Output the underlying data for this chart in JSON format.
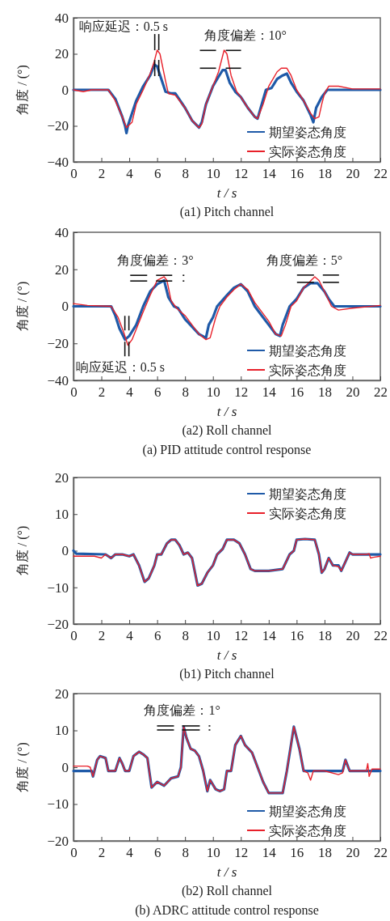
{
  "chart_data": [
    {
      "type": "line",
      "title": "(a1) Pitch channel",
      "xlabel": "t / s",
      "ylabel": "角度 / (°)",
      "xlim": [
        0,
        22
      ],
      "xticks": [
        0,
        2,
        4,
        6,
        8,
        10,
        12,
        14,
        16,
        18,
        20,
        22
      ],
      "ylim": [
        -40,
        40
      ],
      "yticks": [
        -40,
        -20,
        0,
        20,
        40
      ],
      "legend": "bottom right",
      "annotations": [
        {
          "text": "响应延迟：0.5 s",
          "x": 6,
          "y": 22
        },
        {
          "text": "角度偏差：10°",
          "x": 10.8,
          "y": 21
        }
      ],
      "series": [
        {
          "name": "期望姿态角度",
          "color": "#1f5aa8",
          "x": [
            0,
            2.5,
            3,
            3.5,
            3.7,
            3.8,
            3.9,
            4.5,
            5,
            5.5,
            5.8,
            6,
            6.3,
            6.6,
            7,
            7.3,
            8,
            8.5,
            9,
            9.2,
            9.5,
            10,
            10.3,
            10.7,
            10.9,
            11.2,
            11.6,
            12,
            12.5,
            13,
            13.2,
            13.5,
            13.8,
            14.2,
            14.6,
            15,
            15.3,
            15.6,
            16,
            16.5,
            17,
            17.2,
            17.4,
            17.8,
            18,
            18.2,
            22
          ],
          "values": [
            0,
            0,
            -5,
            -15,
            -20,
            -24,
            -20,
            -6,
            2,
            8,
            14,
            13,
            6,
            -1,
            -2,
            -2,
            -10,
            -17,
            -21,
            -18,
            -8,
            2,
            6,
            11,
            11,
            4,
            -1,
            -4,
            -10,
            -15,
            -16,
            -8,
            0,
            1,
            6,
            8,
            9,
            4,
            -1,
            -6,
            -14,
            -18,
            -10,
            -4,
            -2,
            0,
            0
          ]
        },
        {
          "name": "实际姿态角度",
          "color": "#e8202a",
          "x": [
            0,
            0.7,
            1.3,
            2.5,
            3,
            3.5,
            3.8,
            4.2,
            4.5,
            5,
            5.5,
            5.8,
            6,
            6.2,
            6.6,
            6.8,
            7.3,
            8,
            8.5,
            9,
            9.2,
            9.5,
            10,
            10.4,
            10.8,
            11,
            11.3,
            11.7,
            12,
            12.5,
            13,
            13.2,
            13.6,
            14,
            14.6,
            14.9,
            15.3,
            15.6,
            16,
            16.5,
            17,
            17.3,
            17.6,
            17.8,
            18,
            18.3,
            19,
            20,
            22
          ],
          "values": [
            0,
            -1,
            0,
            0,
            -6,
            -15,
            -21,
            -18,
            -8,
            0,
            9,
            16,
            22,
            20,
            5,
            -2,
            -3,
            -10,
            -17,
            -21,
            -19,
            -8,
            2,
            10,
            22,
            20,
            8,
            -1,
            -4,
            -10,
            -15,
            -16,
            -8,
            2,
            10,
            12,
            12,
            8,
            0,
            -6,
            -13,
            -16,
            -15,
            -8,
            -2,
            2,
            2,
            0.5,
            0.5
          ]
        }
      ]
    },
    {
      "type": "line",
      "title": "(a2) Roll channel",
      "xlabel": "t / s",
      "ylabel": "角度 / (°)",
      "xlim": [
        0,
        22
      ],
      "xticks": [
        0,
        2,
        4,
        6,
        8,
        10,
        12,
        14,
        16,
        18,
        20,
        22
      ],
      "ylim": [
        -40,
        40
      ],
      "yticks": [
        -40,
        -20,
        0,
        20,
        40
      ],
      "legend": "bottom right",
      "annotations": [
        {
          "text": "角度偏差：3°",
          "x": 6.5,
          "y": 15
        },
        {
          "text": "角度偏差：5°",
          "x": 17.3,
          "y": 16
        },
        {
          "text": "响应延迟：0.5 s",
          "x": 3.8,
          "y": -20
        },
        "(a) PID attitude control response"
      ],
      "series": [
        {
          "name": "期望姿态角度",
          "color": "#1f5aa8",
          "x": [
            0,
            2.7,
            3,
            3.3,
            3.7,
            4,
            4.5,
            5,
            5.5,
            6,
            6.5,
            6.8,
            7.2,
            7.5,
            8,
            8.5,
            9,
            9.5,
            9.7,
            10,
            10.3,
            11,
            11.5,
            12,
            12.5,
            13,
            13.5,
            14,
            14.5,
            14.8,
            15,
            15.5,
            16,
            16.5,
            17,
            17.5,
            18,
            18.3,
            18.7,
            22
          ],
          "values": [
            0,
            0,
            -5,
            -12,
            -18,
            -16,
            -10,
            0,
            8,
            12,
            14,
            5,
            0,
            -1,
            -7,
            -11,
            -15,
            -17,
            -10,
            -6,
            0,
            6,
            10,
            12,
            8,
            0,
            -5,
            -10,
            -15,
            -16,
            -10,
            0,
            4,
            10,
            12.5,
            12.5,
            8,
            4,
            0,
            0
          ]
        },
        {
          "name": "实际姿态角度",
          "color": "#e8202a",
          "x": [
            0,
            1,
            2.7,
            3.2,
            3.6,
            3.9,
            4.2,
            5,
            5.5,
            6,
            6.5,
            6.7,
            7,
            7.4,
            8,
            8.5,
            9,
            9.5,
            9.8,
            10.2,
            10.5,
            11,
            11.5,
            12,
            12.5,
            13,
            13.5,
            14,
            14.5,
            14.9,
            15.2,
            15.6,
            16,
            16.5,
            17.3,
            17.6,
            18,
            18.5,
            19,
            20,
            22
          ],
          "values": [
            1.5,
            0.5,
            0,
            -6,
            -14,
            -21,
            -18,
            -3,
            6,
            14,
            16,
            14,
            3,
            -1,
            -5,
            -10,
            -15,
            -18,
            -17,
            -6,
            0,
            5,
            9,
            12,
            9,
            2,
            -3,
            -8,
            -15,
            -16,
            -10,
            0,
            3,
            10,
            16,
            14,
            8,
            0,
            -2,
            -1,
            0.5
          ]
        }
      ]
    },
    {
      "type": "line",
      "title": "(b1) Pitch channel",
      "xlabel": "t / s",
      "ylabel": "角度 / (°)",
      "xlim": [
        0,
        22
      ],
      "xticks": [
        0,
        2,
        4,
        6,
        8,
        10,
        12,
        14,
        16,
        18,
        20,
        22
      ],
      "ylim": [
        -20,
        20
      ],
      "yticks": [
        -20,
        -10,
        0,
        10,
        20
      ],
      "legend": "top right",
      "series": [
        {
          "name": "期望姿态角度",
          "color": "#1f5aa8",
          "x": [
            0,
            0.2,
            2.2,
            2.3,
            2.7,
            3,
            3.5,
            4,
            4.3,
            4.7,
            5.1,
            5.4,
            5.8,
            6,
            6.3,
            6.7,
            7,
            7.3,
            7.6,
            7.9,
            8.2,
            8.5,
            8.9,
            9.2,
            9.6,
            10,
            10.3,
            10.7,
            11,
            11.5,
            11.9,
            12.3,
            12.7,
            13,
            14,
            15,
            15.5,
            15.8,
            16,
            16.6,
            17.3,
            17.6,
            17.8,
            18,
            18.3,
            18.6,
            19,
            19.2,
            19.5,
            19.8,
            20,
            22
          ],
          "values": [
            0,
            -0.8,
            -1,
            -1,
            -2,
            -1,
            -1,
            -1.5,
            -1,
            -4,
            -8.5,
            -7.5,
            -4,
            -1,
            -1,
            2,
            3,
            3,
            1.5,
            -1,
            -0.5,
            -2,
            -9.5,
            -9,
            -6,
            -4,
            -1,
            0.5,
            3,
            3,
            2,
            -1,
            -5,
            -5.5,
            -5.5,
            -5,
            -1,
            0,
            3,
            3.2,
            3,
            -1,
            -6,
            -5,
            -2,
            -4,
            -4,
            -5.5,
            -3,
            -0.5,
            -1,
            -1
          ]
        },
        {
          "name": "实际姿态角度",
          "color": "#e8202a",
          "x": [
            0,
            1.5,
            2,
            2.3,
            2.7,
            3,
            3.5,
            4,
            4.3,
            4.7,
            5.1,
            5.4,
            5.8,
            6,
            6.3,
            6.7,
            7,
            7.3,
            7.6,
            7.9,
            8.2,
            8.5,
            8.9,
            9.2,
            9.6,
            10,
            10.3,
            10.7,
            11,
            11.5,
            11.9,
            12.3,
            12.7,
            13,
            14,
            15,
            15.5,
            15.8,
            16,
            16.6,
            17.3,
            17.6,
            17.8,
            18,
            18.3,
            18.6,
            19,
            19.2,
            19.5,
            19.8,
            20,
            21,
            21.2,
            21.3,
            21.5,
            22
          ],
          "values": [
            -1.5,
            -1.5,
            -2,
            -1,
            -2,
            -1,
            -1,
            -1.5,
            -1,
            -4,
            -8.5,
            -7.5,
            -4,
            -1,
            -1,
            2,
            3,
            3,
            1.5,
            -1,
            -0.5,
            -2,
            -9.5,
            -9,
            -6,
            -4,
            -1,
            0.5,
            3,
            3,
            2,
            -1,
            -5,
            -5.5,
            -5.5,
            -5,
            -1,
            0,
            3,
            3.2,
            3,
            -1,
            -6,
            -5,
            -2,
            -4,
            -4.3,
            -5.5,
            -3,
            -0.5,
            -1,
            -1,
            -0.8,
            -2,
            -1.8,
            -1.5
          ]
        }
      ]
    },
    {
      "type": "line",
      "title": "(b2) Roll channel",
      "xlabel": "t / s",
      "ylabel": "角度 / (°)",
      "xlim": [
        0,
        22
      ],
      "xticks": [
        0,
        2,
        4,
        6,
        8,
        10,
        12,
        14,
        16,
        18,
        20,
        22
      ],
      "ylim": [
        -20,
        20
      ],
      "yticks": [
        -20,
        -10,
        0,
        10,
        20
      ],
      "legend": "bottom right",
      "annotations": [
        {
          "text": "角度偏差：1°",
          "x": 7.9,
          "y": 11
        },
        "(b) ADRC attitude control response"
      ],
      "series": [
        {
          "name": "期望姿态角度",
          "color": "#1f5aa8",
          "x": [
            0,
            1.3,
            1.4,
            1.7,
            1.9,
            2.3,
            2.5,
            3,
            3.3,
            3.5,
            3.7,
            4,
            4.3,
            4.7,
            5,
            5.3,
            5.6,
            6,
            6.5,
            7,
            7.5,
            7.7,
            7.9,
            8.1,
            8.4,
            8.7,
            9,
            9.3,
            9.6,
            9.8,
            10.2,
            10.5,
            10.8,
            11,
            11.3,
            11.6,
            12,
            12.3,
            12.8,
            13.3,
            13.6,
            14,
            15,
            15.3,
            15.8,
            16.2,
            16.5,
            17,
            17.5,
            19.3,
            19.5,
            19.8,
            22
          ],
          "values": [
            -1,
            -1,
            -2.5,
            2,
            3,
            2.5,
            -1,
            -1,
            2.5,
            1,
            -1,
            -1,
            3,
            4.2,
            3.5,
            2.5,
            -5.5,
            -4,
            -5,
            -3,
            -2.5,
            0,
            11,
            8,
            5,
            4.5,
            3,
            -1,
            -6.5,
            -3.5,
            -6,
            -6.5,
            -6,
            -1,
            -1,
            6,
            8.5,
            6,
            4,
            -1,
            -4,
            -7,
            -7,
            -1,
            11,
            5,
            -1,
            -1,
            -1,
            -1,
            2,
            -1,
            -1
          ]
        },
        {
          "name": "实际姿态角度",
          "color": "#e8202a",
          "x": [
            0,
            1,
            1.2,
            1.4,
            1.7,
            1.9,
            2.3,
            2.5,
            3,
            3.3,
            3.5,
            3.7,
            4,
            4.3,
            4.7,
            5,
            5.3,
            5.6,
            6,
            6.5,
            7,
            7.5,
            7.7,
            7.9,
            8.1,
            8.4,
            8.7,
            9,
            9.3,
            9.6,
            9.8,
            10.2,
            10.5,
            10.8,
            11,
            11.3,
            11.6,
            12,
            12.3,
            12.8,
            13.3,
            13.6,
            14,
            15,
            15.3,
            15.8,
            16.2,
            16.5,
            16.8,
            17,
            17.2,
            18,
            19,
            19.3,
            19.5,
            19.8,
            20,
            21,
            21.1,
            21.2,
            21.4,
            22
          ],
          "values": [
            0.3,
            0.3,
            0,
            -2.5,
            2,
            3,
            2.5,
            -1,
            -1,
            2.5,
            1,
            -1,
            -1,
            3,
            4.2,
            3.5,
            2.5,
            -5.5,
            -4,
            -5,
            -3,
            -2.5,
            0,
            11,
            8,
            5,
            4.5,
            3,
            -1,
            -6.5,
            -3.5,
            -6,
            -6.5,
            -6,
            -1,
            -1,
            6,
            8.5,
            6,
            4,
            -1,
            -4,
            -7,
            -7,
            -1,
            11,
            5,
            -1,
            -1.5,
            -3.5,
            -1,
            -1,
            -2,
            -1.5,
            2,
            -1,
            -1,
            -1,
            1,
            -2.5,
            -0.5,
            -0.5
          ]
        }
      ]
    }
  ]
}
